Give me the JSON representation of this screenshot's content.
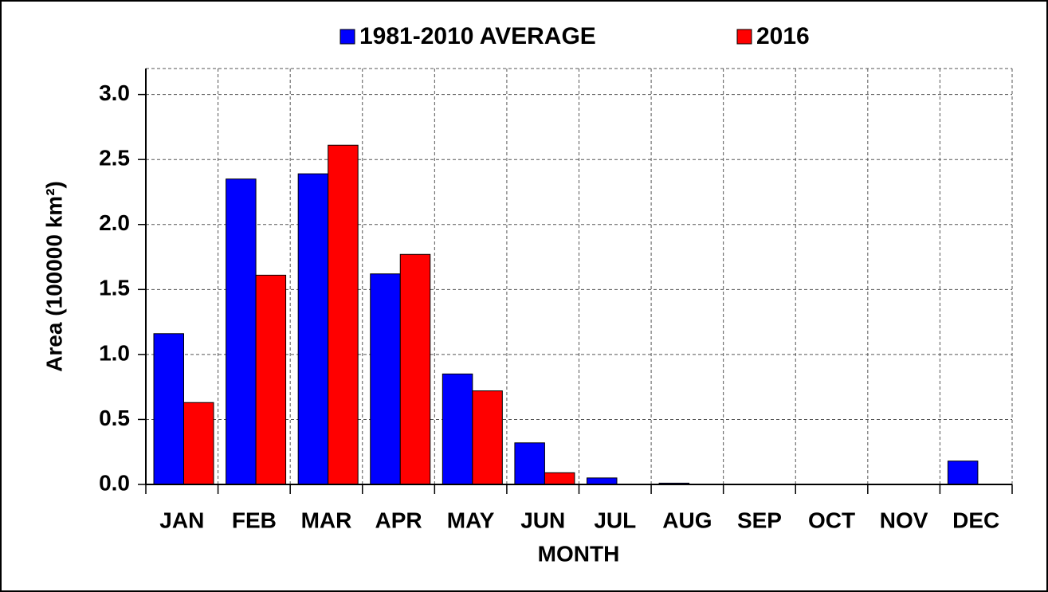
{
  "chart_data": {
    "type": "bar",
    "categories": [
      "JAN",
      "FEB",
      "MAR",
      "APR",
      "MAY",
      "JUN",
      "JUL",
      "AUG",
      "SEP",
      "OCT",
      "NOV",
      "DEC"
    ],
    "series": [
      {
        "name": "1981-2010 AVERAGE",
        "color": "#0000ff",
        "values": [
          1.16,
          2.35,
          2.39,
          1.62,
          0.85,
          0.32,
          0.05,
          0.01,
          0,
          0,
          0,
          0.18
        ]
      },
      {
        "name": "2016",
        "color": "#ff0000",
        "values": [
          0.63,
          1.61,
          2.61,
          1.77,
          0.72,
          0.09,
          0,
          0,
          0,
          0,
          0,
          0
        ]
      }
    ],
    "x_label": "MONTH",
    "y_label": "Area (100000 km²)",
    "ylim": [
      0,
      3.2
    ],
    "yticks": [
      {
        "value": 0,
        "label": "0.0"
      },
      0.5,
      {
        "value": 1,
        "label": "1.0"
      },
      1.5,
      {
        "value": 2,
        "label": "2.0"
      },
      2.5,
      {
        "value": 3,
        "label": "3.0"
      }
    ],
    "grid": true
  }
}
